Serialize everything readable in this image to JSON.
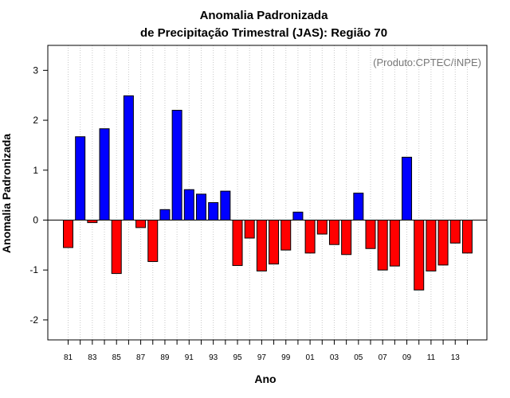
{
  "chart_data": {
    "type": "bar",
    "title_line1": "Anomalia Padronizada",
    "title_line2": "de Precipitação Trimestral (JAS): Região 70",
    "xlabel": "Ano",
    "ylabel": "Anomalia Padronizada",
    "watermark": "(Produto:CPTEC/INPE)",
    "ylim": [
      -2.4,
      3.5
    ],
    "y_ticks": [
      -2,
      -1,
      0,
      1,
      2,
      3
    ],
    "x_tick_labels": [
      "81",
      "83",
      "85",
      "87",
      "89",
      "91",
      "93",
      "95",
      "97",
      "99",
      "01",
      "03",
      "05",
      "07",
      "09",
      "11",
      "13"
    ],
    "categories": [
      "1981",
      "1982",
      "1983",
      "1984",
      "1985",
      "1986",
      "1987",
      "1988",
      "1989",
      "1990",
      "1991",
      "1992",
      "1993",
      "1994",
      "1995",
      "1996",
      "1997",
      "1998",
      "1999",
      "2000",
      "2001",
      "2002",
      "2003",
      "2004",
      "2005",
      "2006",
      "2007",
      "2008",
      "2009",
      "2010",
      "2011",
      "2012",
      "2013",
      "2014"
    ],
    "values": [
      -0.55,
      1.67,
      -0.05,
      1.83,
      -1.07,
      2.49,
      -0.15,
      -0.83,
      0.21,
      2.2,
      0.61,
      0.52,
      0.35,
      0.58,
      -0.91,
      -0.36,
      -1.02,
      -0.88,
      -0.6,
      0.16,
      -0.66,
      -0.28,
      -0.49,
      -0.69,
      0.54,
      -0.57,
      -1.0,
      -0.92,
      1.26,
      -1.4,
      -1.02,
      -0.9,
      -0.46,
      -0.66
    ],
    "colors": {
      "positive": "#0000ff",
      "negative": "#ff0000",
      "grid": "#c8c8c8",
      "axis": "#000000"
    }
  }
}
